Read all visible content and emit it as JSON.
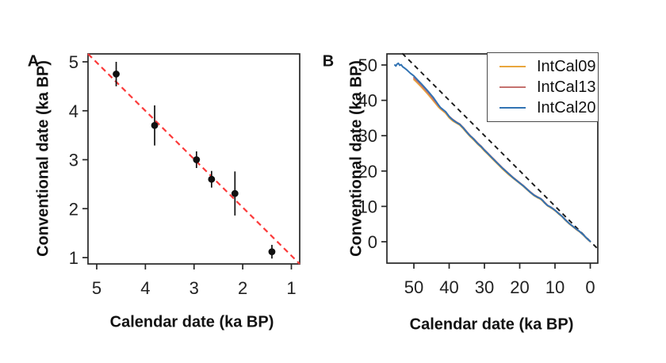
{
  "figure": {
    "background": "#ffffff",
    "axis_color": "#262626",
    "tick_label_color": "#222222"
  },
  "chart_data": [
    {
      "type": "scatter",
      "panel_label": "A",
      "xlabel": "Calendar date (ka BP)",
      "ylabel": "Conventional date (ka BP)",
      "x_ticks": [
        5,
        4,
        3,
        2,
        1
      ],
      "y_ticks": [
        1,
        2,
        3,
        4,
        5
      ],
      "x_axis_reversed": true,
      "xlim": [
        5.18,
        0.85
      ],
      "ylim": [
        0.87,
        5.16
      ],
      "grid": false,
      "point_color": "#111111",
      "points": [
        {
          "x": 4.6,
          "y": 4.75,
          "err": 0.25
        },
        {
          "x": 3.81,
          "y": 3.7,
          "err": 0.41
        },
        {
          "x": 2.95,
          "y": 3.0,
          "err": 0.17
        },
        {
          "x": 2.64,
          "y": 2.6,
          "err": 0.17
        },
        {
          "x": 2.16,
          "y": 2.31,
          "err": 0.45
        },
        {
          "x": 1.4,
          "y": 1.12,
          "err": 0.14
        }
      ],
      "ref_line": {
        "equation": "y = x",
        "style": "dashed",
        "color": "#fb3a3a"
      }
    },
    {
      "type": "line",
      "panel_label": "B",
      "xlabel": "Calendar date (ka BP)",
      "ylabel": "Conventional date (ka BP)",
      "x_ticks": [
        50,
        40,
        30,
        20,
        10,
        0
      ],
      "y_ticks": [
        0,
        10,
        20,
        30,
        40,
        50
      ],
      "x_axis_reversed": true,
      "xlim": [
        57.5,
        -2.1
      ],
      "ylim": [
        -6.0,
        53.2
      ],
      "grid": false,
      "legend_position": "top-right",
      "ref_line": {
        "equation": "y = x",
        "style": "dashed",
        "color": "#1a1a1a"
      },
      "series": [
        {
          "name": "IntCal09",
          "color": "#E9A63D",
          "points": [
            [
              50,
              45.9
            ],
            [
              49,
              44.9
            ],
            [
              48,
              43.9
            ],
            [
              47,
              42.8
            ],
            [
              46,
              41.7
            ],
            [
              45,
              40.5
            ],
            [
              44,
              39.3
            ],
            [
              43,
              38.1
            ],
            [
              42.5,
              37.6
            ],
            [
              42,
              37.2
            ],
            [
              41,
              36.4
            ],
            [
              40,
              35.1
            ],
            [
              39,
              34.2
            ],
            [
              38,
              33.6
            ],
            [
              37,
              33.0
            ],
            [
              36,
              32.0
            ],
            [
              35,
              30.8
            ],
            [
              34,
              29.7
            ],
            [
              33,
              28.8
            ],
            [
              32,
              27.7
            ],
            [
              31,
              26.8
            ],
            [
              30,
              25.7
            ],
            [
              29,
              24.7
            ],
            [
              28,
              23.7
            ],
            [
              27,
              22.7
            ],
            [
              26,
              21.7
            ],
            [
              25,
              20.7
            ],
            [
              24,
              19.8
            ],
            [
              23,
              18.9
            ],
            [
              22,
              18.1
            ],
            [
              21,
              17.3
            ],
            [
              20,
              16.5
            ],
            [
              19,
              15.7
            ],
            [
              18,
              14.8
            ],
            [
              17,
              13.9
            ],
            [
              16,
              13.1
            ],
            [
              15,
              12.5
            ],
            [
              14,
              12.0
            ],
            [
              13,
              11.0
            ],
            [
              12,
              10.1
            ],
            [
              11,
              9.5
            ],
            [
              10,
              8.8
            ],
            [
              9,
              7.9
            ],
            [
              8,
              7.1
            ],
            [
              7,
              6.0
            ],
            [
              6,
              5.1
            ],
            [
              5,
              4.3
            ],
            [
              4,
              3.5
            ],
            [
              3,
              2.8
            ],
            [
              2,
              1.9
            ],
            [
              1,
              0.9
            ],
            [
              0,
              0.0
            ]
          ]
        },
        {
          "name": "IntCal13",
          "color": "#C4716E",
          "points": [
            [
              50,
              46.4
            ],
            [
              49,
              45.4
            ],
            [
              48,
              44.4
            ],
            [
              47,
              43.3
            ],
            [
              46,
              42.2
            ],
            [
              45,
              41.0
            ],
            [
              44.5,
              40.3
            ],
            [
              44,
              39.7
            ],
            [
              43.5,
              39.1
            ],
            [
              43,
              38.5
            ],
            [
              42.5,
              37.9
            ],
            [
              42,
              37.5
            ],
            [
              41.5,
              37.1
            ],
            [
              41,
              36.7
            ],
            [
              40.5,
              36.1
            ],
            [
              40,
              35.5
            ],
            [
              39,
              34.6
            ],
            [
              38,
              33.9
            ],
            [
              37,
              33.3
            ],
            [
              36,
              32.3
            ],
            [
              35,
              31.1
            ],
            [
              34,
              30.0
            ],
            [
              33,
              29.1
            ],
            [
              32,
              28.0
            ],
            [
              31,
              27.1
            ],
            [
              30,
              26.0
            ],
            [
              29,
              25.0
            ],
            [
              28,
              24.0
            ],
            [
              27,
              23.0
            ],
            [
              26,
              22.0
            ],
            [
              25,
              21.0
            ],
            [
              24,
              20.1
            ],
            [
              23,
              19.2
            ],
            [
              22,
              18.3
            ],
            [
              21,
              17.5
            ],
            [
              20,
              16.7
            ],
            [
              19,
              15.9
            ],
            [
              18,
              15.0
            ],
            [
              17,
              14.1
            ],
            [
              16,
              13.3
            ],
            [
              15,
              12.7
            ],
            [
              14,
              12.2
            ],
            [
              13,
              11.2
            ],
            [
              12,
              10.2
            ],
            [
              11,
              9.7
            ],
            [
              10,
              8.9
            ],
            [
              9,
              8.1
            ],
            [
              8,
              7.2
            ],
            [
              7,
              6.2
            ],
            [
              6,
              5.2
            ],
            [
              5,
              4.4
            ],
            [
              4,
              3.6
            ],
            [
              3,
              2.9
            ],
            [
              2,
              2.0
            ],
            [
              1,
              1.0
            ],
            [
              0,
              0.1
            ]
          ]
        },
        {
          "name": "IntCal20",
          "color": "#3273B3",
          "points": [
            [
              55.4,
              50.0
            ],
            [
              55.1,
              49.7
            ],
            [
              54.8,
              50.2
            ],
            [
              54.4,
              50.5
            ],
            [
              54.0,
              49.9
            ],
            [
              53.6,
              50.1
            ],
            [
              53.2,
              49.5
            ],
            [
              52.6,
              49.1
            ],
            [
              52.0,
              48.6
            ],
            [
              51.0,
              47.7
            ],
            [
              50.0,
              46.9
            ],
            [
              49.0,
              45.8
            ],
            [
              48.0,
              44.8
            ],
            [
              47.0,
              43.7
            ],
            [
              46.0,
              42.6
            ],
            [
              45.0,
              41.4
            ],
            [
              44.5,
              40.8
            ],
            [
              44.0,
              40.1
            ],
            [
              43.5,
              39.4
            ],
            [
              43.0,
              38.7
            ],
            [
              42.5,
              38.0
            ],
            [
              42.0,
              37.6
            ],
            [
              41.5,
              37.2
            ],
            [
              41.0,
              36.8
            ],
            [
              40.5,
              36.1
            ],
            [
              40.0,
              35.4
            ],
            [
              39.5,
              34.9
            ],
            [
              39.0,
              34.5
            ],
            [
              38.5,
              34.1
            ],
            [
              38.0,
              33.8
            ],
            [
              37.5,
              33.5
            ],
            [
              37.0,
              33.2
            ],
            [
              36.5,
              32.7
            ],
            [
              36.0,
              32.2
            ],
            [
              35.5,
              31.6
            ],
            [
              35.0,
              31.0
            ],
            [
              34.5,
              30.4
            ],
            [
              34.0,
              29.9
            ],
            [
              33.5,
              29.5
            ],
            [
              33.0,
              29.0
            ],
            [
              32.5,
              28.4
            ],
            [
              32.0,
              27.9
            ],
            [
              31.5,
              27.4
            ],
            [
              31.0,
              27.0
            ],
            [
              30.0,
              25.9
            ],
            [
              29.0,
              24.9
            ],
            [
              28.0,
              23.9
            ],
            [
              27.0,
              22.9
            ],
            [
              26.0,
              21.9
            ],
            [
              25.0,
              20.9
            ],
            [
              24.0,
              20.0
            ],
            [
              23.0,
              19.1
            ],
            [
              22.0,
              18.2
            ],
            [
              21.0,
              17.4
            ],
            [
              20.0,
              16.6
            ],
            [
              19.0,
              15.8
            ],
            [
              18.0,
              14.9
            ],
            [
              17.0,
              14.0
            ],
            [
              16.0,
              13.2
            ],
            [
              15.0,
              12.6
            ],
            [
              14.5,
              12.4
            ],
            [
              14.0,
              12.1
            ],
            [
              13.5,
              11.7
            ],
            [
              13.0,
              11.1
            ],
            [
              12.6,
              10.7
            ],
            [
              12.2,
              10.3
            ],
            [
              11.8,
              10.1
            ],
            [
              11.4,
              9.9
            ],
            [
              11.0,
              9.6
            ],
            [
              10.5,
              9.3
            ],
            [
              10.0,
              8.9
            ],
            [
              9.0,
              8.0
            ],
            [
              8.0,
              7.2
            ],
            [
              7.0,
              6.1
            ],
            [
              6.0,
              5.2
            ],
            [
              5.0,
              4.4
            ],
            [
              4.0,
              3.6
            ],
            [
              3.0,
              2.9
            ],
            [
              2.0,
              2.0
            ],
            [
              1.0,
              1.0
            ],
            [
              0.5,
              0.5
            ],
            [
              0.0,
              0.1
            ]
          ]
        }
      ]
    }
  ]
}
